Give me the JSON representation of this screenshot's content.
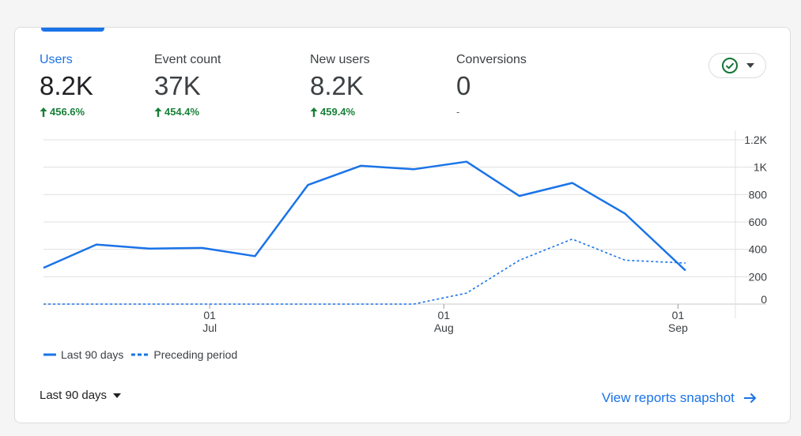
{
  "metrics": [
    {
      "label": "Users",
      "value": "8.2K",
      "change": "456.6%",
      "trend": "up"
    },
    {
      "label": "Event count",
      "value": "37K",
      "change": "454.4%",
      "trend": "up"
    },
    {
      "label": "New users",
      "value": "8.2K",
      "change": "459.4%",
      "trend": "up"
    },
    {
      "label": "Conversions",
      "value": "0",
      "change": "-",
      "trend": "none"
    }
  ],
  "compare_icon": "check-circle-icon",
  "legend": {
    "current": "Last 90 days",
    "previous": "Preceding period"
  },
  "range_select": {
    "label": "Last 90 days"
  },
  "view_link": {
    "label": "View reports snapshot"
  },
  "colors": {
    "accent": "#1a73e8",
    "positive": "#188038",
    "grid": "#e0e0e0"
  },
  "chart_data": {
    "type": "line",
    "x_ticks": [
      {
        "day": "01",
        "month": "Jul"
      },
      {
        "day": "01",
        "month": "Aug"
      },
      {
        "day": "01",
        "month": "Sep"
      }
    ],
    "y_ticks": [
      "1.2K",
      "1K",
      "800",
      "600",
      "400",
      "200",
      "0"
    ],
    "ylim": [
      0,
      1200
    ],
    "series": [
      {
        "name": "Last 90 days",
        "style": "solid",
        "points": [
          {
            "date": "2023-06-09",
            "y": 265
          },
          {
            "date": "2023-06-16",
            "y": 435
          },
          {
            "date": "2023-06-23",
            "y": 405
          },
          {
            "date": "2023-06-30",
            "y": 410
          },
          {
            "date": "2023-07-07",
            "y": 350
          },
          {
            "date": "2023-07-14",
            "y": 870
          },
          {
            "date": "2023-07-21",
            "y": 1010
          },
          {
            "date": "2023-07-28",
            "y": 985
          },
          {
            "date": "2023-08-04",
            "y": 1040
          },
          {
            "date": "2023-08-11",
            "y": 790
          },
          {
            "date": "2023-08-18",
            "y": 885
          },
          {
            "date": "2023-08-25",
            "y": 660
          },
          {
            "date": "2023-09-02",
            "y": 245
          }
        ]
      },
      {
        "name": "Preceding period",
        "style": "dashed",
        "points": [
          {
            "date": "2023-06-09",
            "y": 0
          },
          {
            "date": "2023-06-16",
            "y": 0
          },
          {
            "date": "2023-06-23",
            "y": 0
          },
          {
            "date": "2023-06-30",
            "y": 0
          },
          {
            "date": "2023-07-07",
            "y": 0
          },
          {
            "date": "2023-07-14",
            "y": 0
          },
          {
            "date": "2023-07-21",
            "y": 0
          },
          {
            "date": "2023-07-28",
            "y": 0
          },
          {
            "date": "2023-08-04",
            "y": 80
          },
          {
            "date": "2023-08-11",
            "y": 320
          },
          {
            "date": "2023-08-18",
            "y": 475
          },
          {
            "date": "2023-08-25",
            "y": 320
          },
          {
            "date": "2023-09-02",
            "y": 300
          }
        ]
      }
    ]
  }
}
